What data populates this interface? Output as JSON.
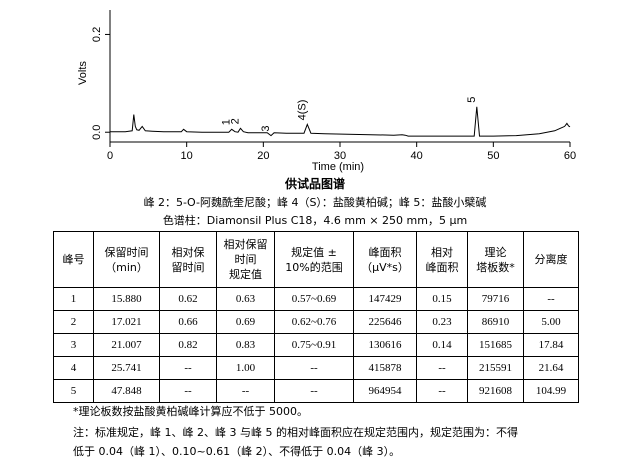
{
  "chart_data": {
    "type": "line",
    "xlabel": "Time (min)",
    "ylabel": "Volts",
    "xlim": [
      0,
      60
    ],
    "ylim": [
      -0.02,
      0.25
    ],
    "x_ticks": [
      0,
      10,
      20,
      30,
      40,
      50,
      60
    ],
    "x_tick_labels": [
      "0",
      "10",
      "20",
      "30",
      "40",
      "50",
      "60"
    ],
    "y_ticks": [
      0.0,
      0.2
    ],
    "y_tick_labels": [
      "0.0",
      "0.2"
    ],
    "grid": false,
    "series": [
      {
        "x": [
          0,
          2,
          2.9,
          3.1,
          3.3,
          3.5,
          3.8,
          4.2,
          4.6,
          5.5,
          7,
          8.5,
          9.3,
          9.6,
          10,
          12,
          14,
          15.5,
          15.88,
          16.3,
          16.7,
          17.02,
          17.4,
          18,
          20.5,
          21.0,
          21.4,
          23,
          25.3,
          25.74,
          26.2,
          28,
          31,
          34,
          37,
          38.1,
          38.5,
          38.9,
          40,
          43,
          46,
          47.5,
          47.85,
          48.2,
          50,
          53,
          56,
          58,
          59.3,
          59.6,
          59.8,
          60
        ],
        "y": [
          0.001,
          0.001,
          0.003,
          0.036,
          0.012,
          0.005,
          0.004,
          0.012,
          0.003,
          0.002,
          0.001,
          0.001,
          0.001,
          0.006,
          0.001,
          0.0,
          0.0,
          0.0,
          0.006,
          0.001,
          0.0,
          0.008,
          0.001,
          -0.001,
          -0.001,
          -0.007,
          -0.001,
          -0.002,
          -0.002,
          0.016,
          -0.002,
          -0.003,
          -0.004,
          -0.005,
          -0.006,
          -0.005,
          -0.006,
          -0.008,
          -0.008,
          -0.008,
          -0.008,
          -0.008,
          0.052,
          -0.008,
          -0.008,
          -0.007,
          -0.003,
          0.003,
          0.012,
          0.018,
          0.013,
          0.011
        ]
      }
    ],
    "annotations": [
      {
        "label": "1",
        "x": 15.88
      },
      {
        "label": "2",
        "x": 17.02
      },
      {
        "label": "3",
        "x": 21.0
      },
      {
        "label": "4(S)",
        "x": 25.74
      },
      {
        "label": "5",
        "x": 47.85
      }
    ]
  },
  "figure": {
    "title": "供试品图谱",
    "peaks_desc": "峰 2：5-O-阿魏酰奎尼酸；峰 4（S）：盐酸黄柏碱；峰 5：盐酸小檗碱",
    "column_desc": "色谱柱：Diamonsil Plus C18，4.6 mm × 250 mm，5 μm"
  },
  "table": {
    "headers": [
      "峰号",
      "保留时间\n（min）",
      "相对保\n留时间",
      "相对保留\n时间\n规定值",
      "规定值 ±\n10%的范围",
      "峰面积\n（μV*s）",
      "相对\n峰面积",
      "理论\n塔板数*",
      "分离度"
    ],
    "rows": [
      [
        "1",
        "15.880",
        "0.62",
        "0.63",
        "0.57~0.69",
        "147429",
        "0.15",
        "79716",
        "--"
      ],
      [
        "2",
        "17.021",
        "0.66",
        "0.69",
        "0.62~0.76",
        "225646",
        "0.23",
        "86910",
        "5.00"
      ],
      [
        "3",
        "21.007",
        "0.82",
        "0.83",
        "0.75~0.91",
        "130616",
        "0.14",
        "151685",
        "17.84"
      ],
      [
        "4",
        "25.741",
        "--",
        "1.00",
        "--",
        "415878",
        "--",
        "215591",
        "21.64"
      ],
      [
        "5",
        "47.848",
        "--",
        "--",
        "--",
        "964954",
        "--",
        "921608",
        "104.99"
      ]
    ]
  },
  "notes": {
    "plate_note": "*理论板数按盐酸黄柏碱峰计算应不低于 5000。",
    "rule_line1": "注：标准规定，峰 1、峰 2、峰 3 与峰 5 的相对峰面积应在规定范围内，规定范围为：不得",
    "rule_line2": "低于 0.04（峰 1）、0.10~0.61（峰 2）、不得低于 0.04（峰 3）。"
  }
}
